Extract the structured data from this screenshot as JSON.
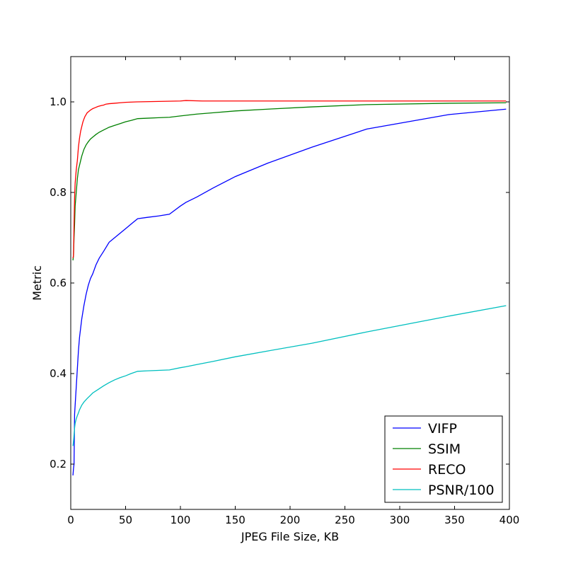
{
  "chart_data": {
    "type": "line",
    "title": "",
    "xlabel": "JPEG File Size, KB",
    "ylabel": "Metric",
    "xlim": [
      0,
      400
    ],
    "ylim": [
      0.1,
      1.1
    ],
    "xticks": [
      0,
      50,
      100,
      150,
      200,
      250,
      300,
      350,
      400
    ],
    "yticks": [
      0.2,
      0.4,
      0.6,
      0.8,
      1.0
    ],
    "xtick_labels": [
      "0",
      "50",
      "100",
      "150",
      "200",
      "250",
      "300",
      "350",
      "400"
    ],
    "ytick_labels": [
      "0.2",
      "0.4",
      "0.6",
      "0.8",
      "1.0"
    ],
    "grid": false,
    "legend_position": "bottom-right",
    "series": [
      {
        "name": "VIFP",
        "color": "#0000ff",
        "x": [
          2,
          2.5,
          3,
          3.5,
          4,
          5,
          6,
          7,
          8,
          9,
          10,
          12,
          14,
          16,
          18,
          20,
          23,
          26,
          30,
          35,
          40,
          45,
          50,
          55,
          61,
          70,
          80,
          90,
          100,
          105,
          115,
          130,
          150,
          180,
          220,
          270,
          345,
          397
        ],
        "y": [
          0.175,
          0.19,
          0.2,
          0.31,
          0.33,
          0.37,
          0.41,
          0.45,
          0.48,
          0.5,
          0.52,
          0.55,
          0.575,
          0.595,
          0.61,
          0.62,
          0.64,
          0.655,
          0.67,
          0.69,
          0.7,
          0.71,
          0.72,
          0.73,
          0.742,
          0.745,
          0.748,
          0.752,
          0.77,
          0.778,
          0.79,
          0.81,
          0.835,
          0.865,
          0.9,
          0.94,
          0.972,
          0.984
        ]
      },
      {
        "name": "SSIM",
        "color": "#008000",
        "x": [
          2,
          2.5,
          3,
          3.5,
          4,
          5,
          6,
          7,
          8,
          9,
          10,
          12,
          14,
          16,
          18,
          20,
          23,
          26,
          30,
          35,
          40,
          45,
          50,
          55,
          61,
          70,
          80,
          90,
          100,
          115,
          130,
          150,
          180,
          220,
          270,
          345,
          397
        ],
        "y": [
          0.65,
          0.66,
          0.7,
          0.73,
          0.77,
          0.8,
          0.83,
          0.85,
          0.86,
          0.87,
          0.88,
          0.895,
          0.905,
          0.912,
          0.918,
          0.922,
          0.928,
          0.933,
          0.938,
          0.944,
          0.948,
          0.952,
          0.956,
          0.959,
          0.963,
          0.964,
          0.965,
          0.966,
          0.969,
          0.973,
          0.976,
          0.98,
          0.984,
          0.989,
          0.994,
          0.997,
          0.998
        ]
      },
      {
        "name": "RECO",
        "color": "#ff0000",
        "x": [
          2,
          2.5,
          3,
          3.5,
          4,
          5,
          6,
          7,
          8,
          9,
          10,
          11,
          12,
          13,
          14,
          15,
          16,
          18,
          20,
          22,
          25,
          28,
          30,
          32,
          35,
          40,
          45,
          50,
          60,
          80,
          100,
          105,
          120,
          150,
          200,
          250,
          300,
          350,
          397
        ],
        "y": [
          0.655,
          0.66,
          0.73,
          0.79,
          0.82,
          0.85,
          0.87,
          0.9,
          0.92,
          0.935,
          0.945,
          0.955,
          0.962,
          0.968,
          0.972,
          0.976,
          0.978,
          0.982,
          0.985,
          0.987,
          0.99,
          0.992,
          0.993,
          0.995,
          0.996,
          0.997,
          0.998,
          0.999,
          1.0,
          1.001,
          1.002,
          1.003,
          1.002,
          1.002,
          1.002,
          1.002,
          1.002,
          1.002,
          1.002
        ]
      },
      {
        "name": "PSNR/100",
        "color": "#00bfbf",
        "x": [
          2,
          2.5,
          3,
          3.5,
          4,
          5,
          6,
          7,
          8,
          10,
          12,
          15,
          18,
          20,
          25,
          30,
          35,
          40,
          45,
          50,
          55,
          61,
          70,
          80,
          90,
          100,
          105,
          115,
          130,
          150,
          180,
          220,
          270,
          345,
          397
        ],
        "y": [
          0.24,
          0.25,
          0.265,
          0.28,
          0.29,
          0.3,
          0.307,
          0.313,
          0.32,
          0.33,
          0.337,
          0.345,
          0.352,
          0.357,
          0.365,
          0.373,
          0.38,
          0.386,
          0.391,
          0.395,
          0.4,
          0.405,
          0.406,
          0.407,
          0.408,
          0.413,
          0.415,
          0.42,
          0.427,
          0.437,
          0.45,
          0.467,
          0.492,
          0.527,
          0.55
        ]
      }
    ]
  }
}
